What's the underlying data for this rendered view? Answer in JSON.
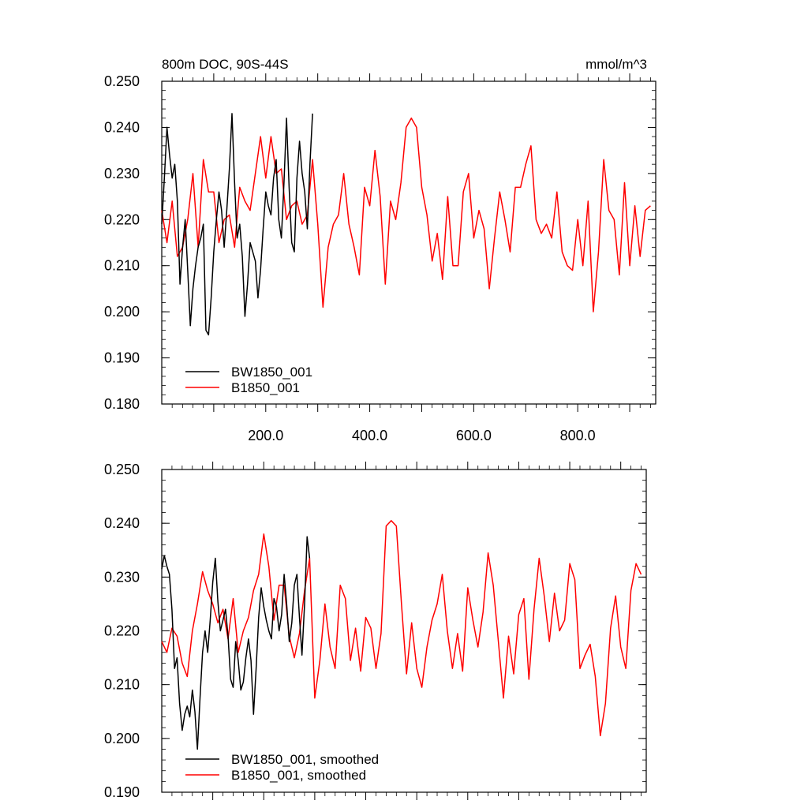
{
  "chart_data": [
    {
      "type": "line",
      "title": "800m DOC, 90S-44S",
      "units": "mmol/m^3",
      "xlim": [
        0,
        950
      ],
      "ylim": [
        0.18,
        0.25
      ],
      "x_tick_values": [
        200,
        400,
        600,
        800
      ],
      "x_tick_labels": [
        "200.0",
        "400.0",
        "600.0",
        "800.0"
      ],
      "y_tick_values": [
        0.18,
        0.19,
        0.2,
        0.21,
        0.22,
        0.23,
        0.24,
        0.25
      ],
      "y_tick_labels": [
        "0.180",
        "0.190",
        "0.200",
        "0.210",
        "0.220",
        "0.230",
        "0.240",
        "0.250"
      ],
      "legend_position": "bottom-left",
      "series": [
        {
          "name": "BW1850_001",
          "color": "#000000",
          "x": [
            0,
            5,
            10,
            15,
            20,
            25,
            30,
            35,
            40,
            45,
            50,
            55,
            60,
            65,
            70,
            75,
            80,
            85,
            90,
            95,
            100,
            105,
            110,
            115,
            120,
            125,
            130,
            135,
            140,
            145,
            150,
            155,
            160,
            165,
            170,
            175,
            180,
            185,
            190,
            195,
            200,
            205,
            210,
            215,
            220,
            225,
            230,
            235,
            240,
            245,
            250,
            255,
            260,
            265,
            270,
            275,
            280,
            285,
            290
          ],
          "y": [
            0.219,
            0.229,
            0.24,
            0.234,
            0.229,
            0.232,
            0.224,
            0.206,
            0.214,
            0.22,
            0.209,
            0.197,
            0.205,
            0.21,
            0.214,
            0.216,
            0.219,
            0.196,
            0.195,
            0.203,
            0.213,
            0.22,
            0.226,
            0.222,
            0.214,
            0.222,
            0.231,
            0.243,
            0.228,
            0.216,
            0.219,
            0.212,
            0.199,
            0.206,
            0.215,
            0.213,
            0.211,
            0.203,
            0.209,
            0.218,
            0.226,
            0.223,
            0.221,
            0.229,
            0.233,
            0.22,
            0.216,
            0.228,
            0.242,
            0.227,
            0.215,
            0.213,
            0.229,
            0.237,
            0.23,
            0.226,
            0.218,
            0.232,
            0.243
          ]
        },
        {
          "name": "B1850_001",
          "color": "#ff0000",
          "x": [
            0,
            10,
            20,
            30,
            40,
            50,
            60,
            70,
            80,
            90,
            100,
            110,
            120,
            130,
            140,
            150,
            160,
            170,
            180,
            190,
            200,
            210,
            220,
            230,
            240,
            250,
            260,
            270,
            280,
            290,
            300,
            310,
            320,
            330,
            340,
            350,
            360,
            370,
            380,
            390,
            400,
            410,
            420,
            430,
            440,
            450,
            460,
            470,
            480,
            490,
            500,
            510,
            520,
            530,
            540,
            550,
            560,
            570,
            580,
            590,
            600,
            610,
            620,
            630,
            640,
            650,
            660,
            670,
            680,
            690,
            700,
            710,
            720,
            730,
            740,
            750,
            760,
            770,
            780,
            790,
            800,
            810,
            820,
            830,
            840,
            850,
            860,
            870,
            880,
            890,
            900,
            910,
            920,
            930,
            940
          ],
          "y": [
            0.222,
            0.215,
            0.224,
            0.212,
            0.214,
            0.22,
            0.23,
            0.214,
            0.233,
            0.226,
            0.226,
            0.215,
            0.22,
            0.221,
            0.214,
            0.227,
            0.224,
            0.222,
            0.23,
            0.238,
            0.229,
            0.238,
            0.23,
            0.231,
            0.22,
            0.223,
            0.224,
            0.219,
            0.221,
            0.233,
            0.219,
            0.201,
            0.214,
            0.219,
            0.221,
            0.23,
            0.219,
            0.214,
            0.208,
            0.227,
            0.223,
            0.235,
            0.225,
            0.206,
            0.224,
            0.22,
            0.228,
            0.24,
            0.242,
            0.24,
            0.227,
            0.221,
            0.211,
            0.217,
            0.207,
            0.225,
            0.21,
            0.21,
            0.226,
            0.23,
            0.216,
            0.222,
            0.218,
            0.205,
            0.216,
            0.226,
            0.22,
            0.213,
            0.227,
            0.227,
            0.232,
            0.236,
            0.22,
            0.217,
            0.219,
            0.216,
            0.226,
            0.213,
            0.21,
            0.209,
            0.22,
            0.21,
            0.224,
            0.2,
            0.213,
            0.233,
            0.222,
            0.22,
            0.208,
            0.228,
            0.21,
            0.223,
            0.212,
            0.222,
            0.223
          ]
        }
      ]
    },
    {
      "type": "line",
      "xlim": [
        0,
        950
      ],
      "ylim": [
        0.19,
        0.25
      ],
      "y_tick_values": [
        0.19,
        0.2,
        0.21,
        0.22,
        0.23,
        0.24,
        0.25
      ],
      "y_tick_labels": [
        "0.190",
        "0.200",
        "0.210",
        "0.220",
        "0.230",
        "0.240",
        "0.250"
      ],
      "legend_position": "bottom-left",
      "series": [
        {
          "name": "BW1850_001, smoothed",
          "color": "#000000",
          "x": [
            0,
            5,
            10,
            15,
            20,
            25,
            30,
            35,
            40,
            45,
            50,
            55,
            60,
            65,
            70,
            75,
            80,
            85,
            90,
            95,
            100,
            105,
            110,
            115,
            120,
            125,
            130,
            135,
            140,
            145,
            150,
            155,
            160,
            165,
            170,
            175,
            180,
            185,
            190,
            195,
            200,
            205,
            210,
            215,
            220,
            225,
            230,
            235,
            240,
            245,
            250,
            255,
            260,
            265,
            270,
            275,
            280,
            285,
            290
          ],
          "y": [
            0.2315,
            0.234,
            0.232,
            0.2305,
            0.224,
            0.213,
            0.215,
            0.2065,
            0.2015,
            0.2045,
            0.206,
            0.204,
            0.209,
            0.205,
            0.198,
            0.2075,
            0.216,
            0.22,
            0.216,
            0.222,
            0.229,
            0.2335,
            0.2255,
            0.22,
            0.222,
            0.224,
            0.219,
            0.211,
            0.2095,
            0.218,
            0.2145,
            0.209,
            0.2105,
            0.215,
            0.2185,
            0.2145,
            0.2045,
            0.213,
            0.2225,
            0.228,
            0.2245,
            0.222,
            0.22,
            0.2185,
            0.226,
            0.2245,
            0.22,
            0.223,
            0.2305,
            0.225,
            0.218,
            0.2215,
            0.2285,
            0.2305,
            0.2225,
            0.2155,
            0.225,
            0.2375,
            0.2335
          ]
        },
        {
          "name": "B1850_001, smoothed",
          "color": "#ff0000",
          "x": [
            0,
            10,
            20,
            30,
            40,
            50,
            60,
            70,
            80,
            90,
            100,
            110,
            120,
            130,
            140,
            150,
            160,
            170,
            180,
            190,
            200,
            210,
            220,
            230,
            240,
            250,
            260,
            270,
            280,
            290,
            300,
            310,
            320,
            330,
            340,
            350,
            360,
            370,
            380,
            390,
            400,
            410,
            420,
            430,
            440,
            450,
            460,
            470,
            480,
            490,
            500,
            510,
            520,
            530,
            540,
            550,
            560,
            570,
            580,
            590,
            600,
            610,
            620,
            630,
            640,
            650,
            660,
            670,
            680,
            690,
            700,
            710,
            720,
            730,
            740,
            750,
            760,
            770,
            780,
            790,
            800,
            810,
            820,
            830,
            840,
            850,
            860,
            870,
            880,
            890,
            900,
            910,
            920,
            930,
            940
          ],
          "y": [
            0.218,
            0.216,
            0.2205,
            0.219,
            0.214,
            0.2115,
            0.22,
            0.225,
            0.231,
            0.2275,
            0.225,
            0.2215,
            0.224,
            0.2185,
            0.226,
            0.216,
            0.22,
            0.2225,
            0.2275,
            0.2305,
            0.238,
            0.232,
            0.222,
            0.2285,
            0.2285,
            0.219,
            0.215,
            0.2195,
            0.2275,
            0.2335,
            0.2075,
            0.2145,
            0.225,
            0.217,
            0.213,
            0.2285,
            0.226,
            0.2145,
            0.2205,
            0.2125,
            0.2225,
            0.2205,
            0.213,
            0.2195,
            0.2395,
            0.2405,
            0.2395,
            0.225,
            0.212,
            0.2215,
            0.213,
            0.2095,
            0.217,
            0.222,
            0.225,
            0.2305,
            0.22,
            0.213,
            0.2195,
            0.2125,
            0.228,
            0.222,
            0.217,
            0.2235,
            0.2345,
            0.2285,
            0.218,
            0.2075,
            0.219,
            0.212,
            0.223,
            0.226,
            0.211,
            0.224,
            0.2335,
            0.2265,
            0.218,
            0.227,
            0.22,
            0.222,
            0.2325,
            0.2295,
            0.213,
            0.2155,
            0.2175,
            0.2115,
            0.2005,
            0.2065,
            0.2205,
            0.2265,
            0.217,
            0.213,
            0.2275,
            0.2325,
            0.2305
          ]
        }
      ]
    }
  ]
}
